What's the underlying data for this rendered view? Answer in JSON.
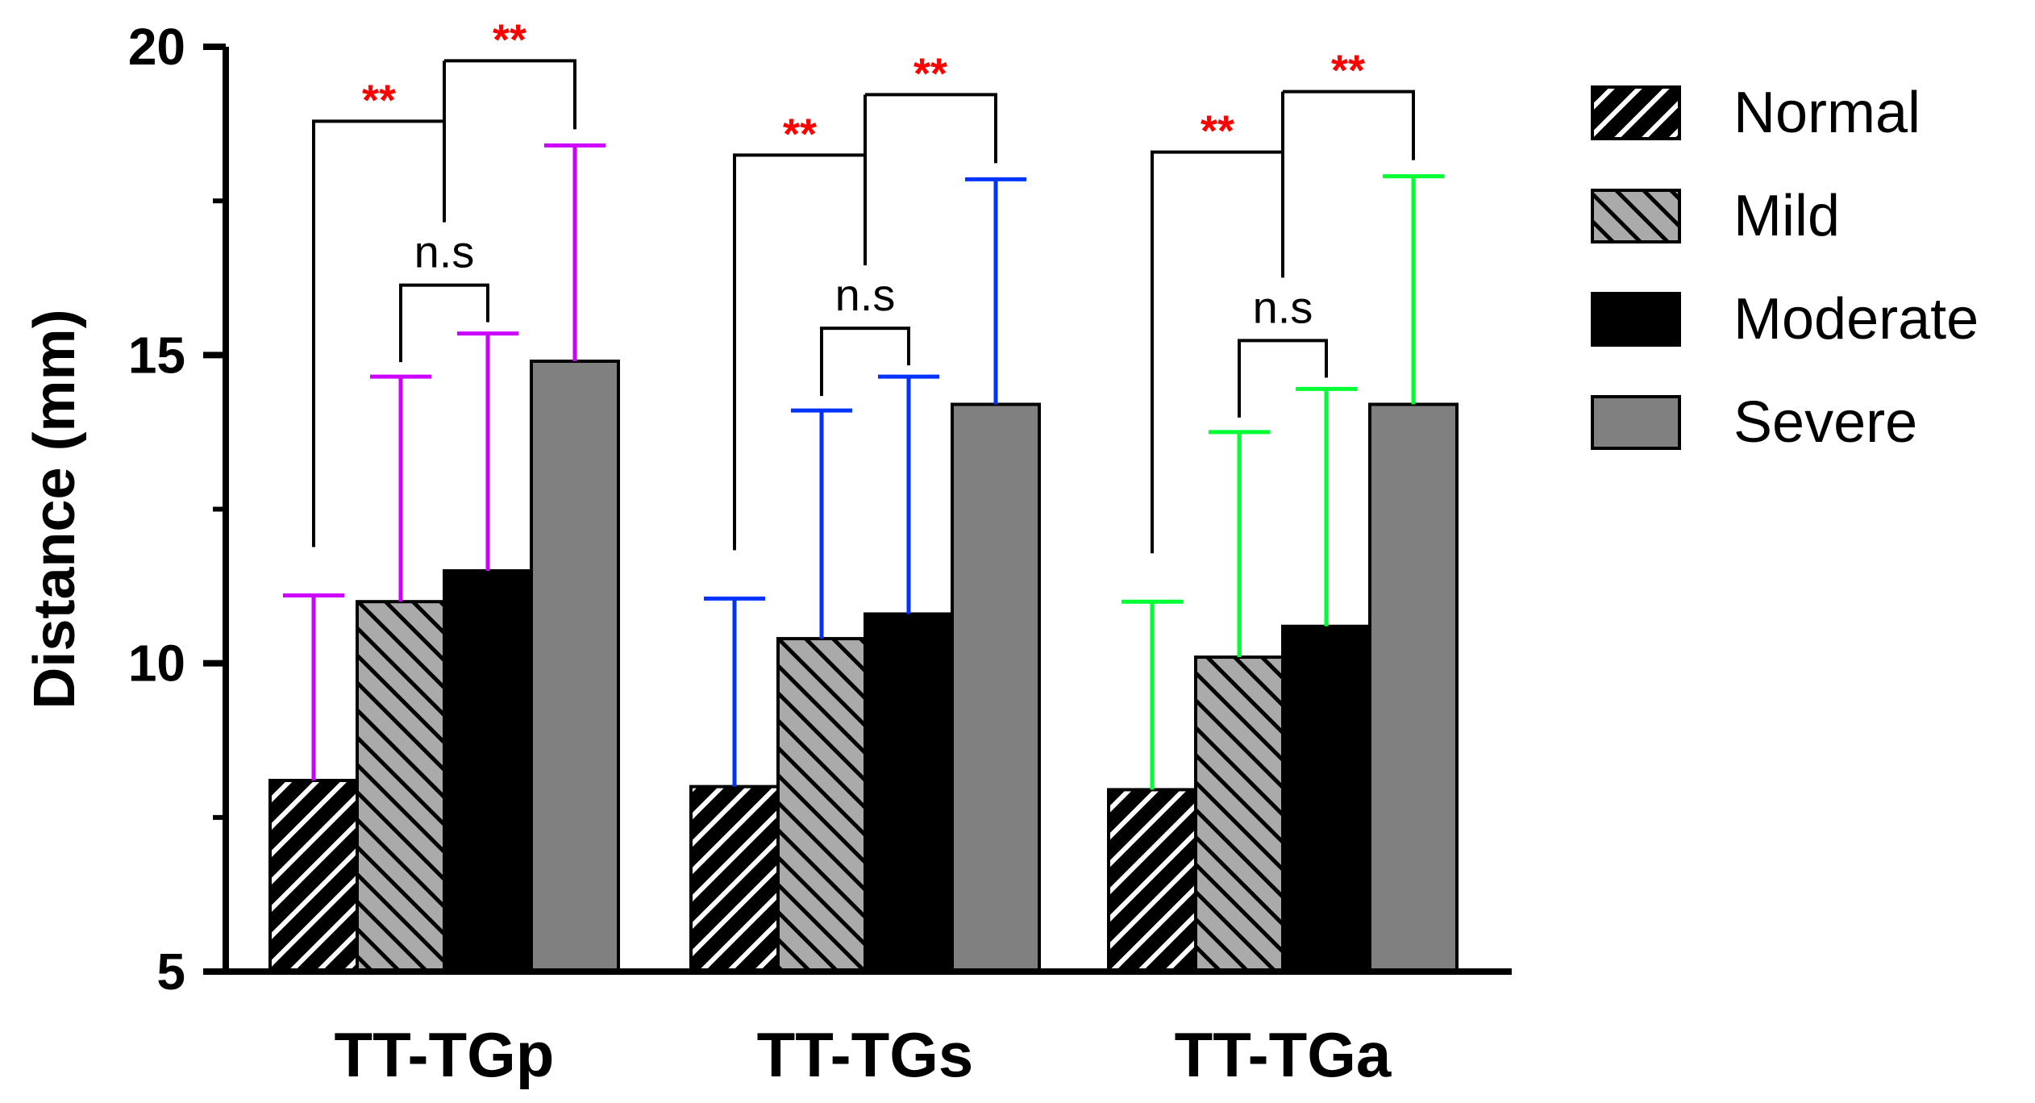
{
  "chart_data": {
    "type": "bar",
    "title": "",
    "xlabel": "",
    "ylabel": "Distance (mm)",
    "ylim": [
      5,
      20
    ],
    "yticks": [
      5,
      10,
      15,
      20
    ],
    "categories": [
      "TT-TGp",
      "TT-TGs",
      "TT-TGa"
    ],
    "errorbar_colors": [
      "#cc00ff",
      "#0033ff",
      "#00ff33"
    ],
    "series": [
      {
        "name": "Normal",
        "values": [
          8.1,
          8.0,
          7.95
        ],
        "errors": [
          3.0,
          3.05,
          3.05
        ],
        "fill": "#000000",
        "pattern": "hatch-light-fwd"
      },
      {
        "name": "Mild",
        "values": [
          11.0,
          10.4,
          10.1
        ],
        "errors": [
          3.65,
          3.7,
          3.65
        ],
        "fill": "#aaaaaa",
        "pattern": "hatch-dark-back"
      },
      {
        "name": "Moderate",
        "values": [
          11.5,
          10.8,
          10.6
        ],
        "errors": [
          3.85,
          3.85,
          3.85
        ],
        "fill": "#000000",
        "pattern": "solid"
      },
      {
        "name": "Severe",
        "values": [
          14.9,
          14.2,
          14.2
        ],
        "errors": [
          3.5,
          3.65,
          3.7
        ],
        "fill": "#808080",
        "pattern": "solid"
      }
    ],
    "significance": {
      "outer_label": "**",
      "inner_label": "n.s"
    },
    "legend_position": "top-right"
  }
}
